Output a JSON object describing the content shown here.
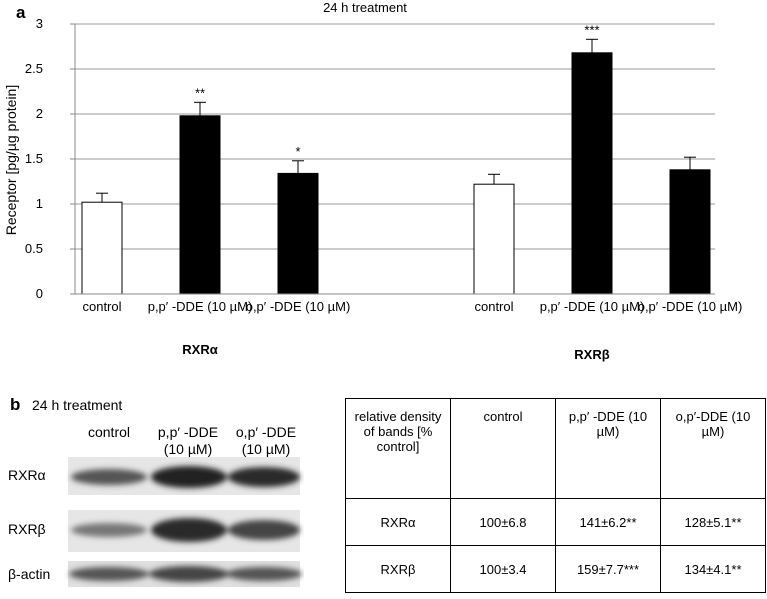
{
  "chart_data": {
    "type": "bar",
    "panel_label": "a",
    "title": "24 h treatment",
    "y_label": "Receptor [pg/µg protein]",
    "ylim": [
      0,
      3
    ],
    "yticks": [
      0,
      0.5,
      1,
      1.5,
      2,
      2.5,
      3
    ],
    "grid": true,
    "groups": [
      {
        "name": "RXRα",
        "categories": [
          "control",
          "p,p′ -DDE (10 µM)",
          "o,p′ -DDE (10 µM)"
        ],
        "values": [
          1.02,
          1.98,
          1.34
        ],
        "errors": [
          0.1,
          0.15,
          0.14
        ],
        "annotations": [
          null,
          "**",
          "*"
        ],
        "colors": [
          "#ffffff",
          "#000000",
          "#000000"
        ]
      },
      {
        "name": "RXRβ",
        "categories": [
          "control",
          "p,p′ -DDE (10 µM)",
          "o,p′ -DDE (10 µM)"
        ],
        "values": [
          1.22,
          2.68,
          1.38
        ],
        "errors": [
          0.11,
          0.15,
          0.14
        ],
        "annotations": [
          null,
          "***",
          null
        ],
        "colors": [
          "#ffffff",
          "#000000",
          "#000000"
        ]
      }
    ]
  },
  "panel_b": {
    "label": "b",
    "title": "24 h treatment",
    "blot": {
      "columns": [
        "control",
        "p,p′ -DDE (10 µM)",
        "o,p′ -DDE (10 µM)"
      ],
      "rows": [
        "RXRα",
        "RXRβ",
        "β-actin"
      ]
    },
    "table": {
      "header": [
        "relative density of bands [% control]",
        "control",
        "p,p′ -DDE (10 µM)",
        "o,p′-DDE (10 µM)"
      ],
      "rows": [
        [
          "RXRα",
          "100±6.8",
          "141±6.2**",
          "128±5.1**"
        ],
        [
          "RXRβ",
          "100±3.4",
          "159±7.7***",
          "134±4.1**"
        ]
      ]
    }
  }
}
